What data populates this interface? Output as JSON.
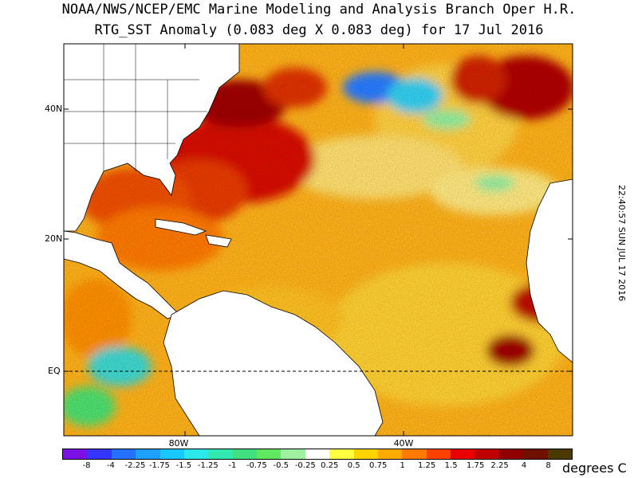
{
  "title_line1": "NOAA/NWS/NCEP/EMC Marine Modeling and Analysis Branch Oper H.R.",
  "title_line2": "RTG_SST Anomaly (0.083 deg X 0.083 deg) for 17 Jul 2016",
  "timestamp": "22:40:57  SUN JUL 17 2016",
  "lat_labels": [
    "40N",
    "20N",
    "EQ"
  ],
  "lon_labels": [
    "80W",
    "40W"
  ],
  "legend": {
    "ticks": [
      "-8",
      "-4",
      "-2.25",
      "-1.75",
      "-1.5",
      "-1.25",
      "-1",
      "-0.75",
      "-0.5",
      "-0.25",
      "0.25",
      "0.5",
      "0.75",
      "1",
      "1.25",
      "1.5",
      "1.75",
      "2.25",
      "4",
      "8"
    ],
    "colors": [
      "#7a10e6",
      "#3535ff",
      "#2470ff",
      "#1ea0ff",
      "#18c8ff",
      "#2ae8e8",
      "#30e8b0",
      "#40e080",
      "#60e860",
      "#9ff09f",
      "#ffffff",
      "#ffff40",
      "#ffd400",
      "#ffaa00",
      "#ff7a00",
      "#ff4000",
      "#e80000",
      "#c00000",
      "#900000",
      "#701000",
      "#4a3a00"
    ],
    "units": "degrees C"
  }
}
